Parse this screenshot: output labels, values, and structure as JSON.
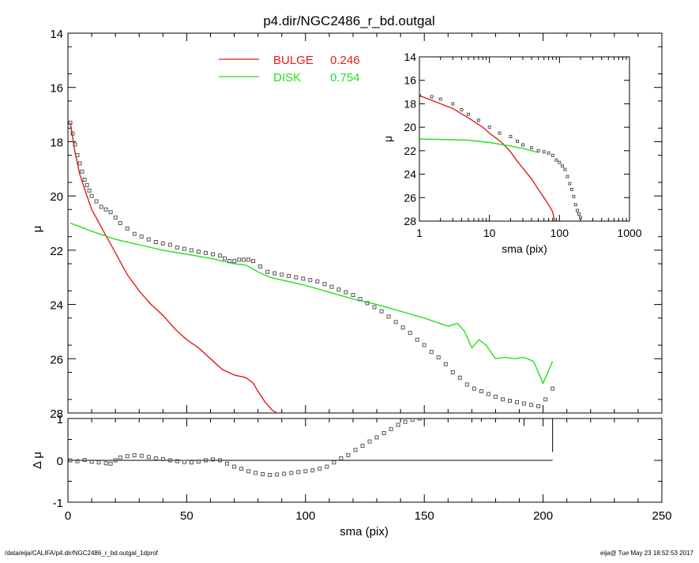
{
  "title": "p4.dir/NGC2486_r_bd.outgal",
  "footer": {
    "left": "/data/eija/CALIFA/p4.dir/NGC2486_r_bd.outgal_1dprof",
    "right": "eija@  Tue May 23 18:52:53 2017"
  },
  "colors": {
    "bulge": "#e31a1c",
    "disk": "#22e022",
    "data": "#555555",
    "axis": "#000000"
  },
  "chart_data": [
    {
      "type": "scatter",
      "name": "main",
      "xlabel": "sma (pix)",
      "ylabel": "μ",
      "xlim": [
        0,
        250
      ],
      "ylim": [
        28,
        14
      ],
      "xticks": [
        0,
        50,
        100,
        150,
        200,
        250
      ],
      "yticks": [
        14,
        16,
        18,
        20,
        22,
        24,
        26,
        28
      ],
      "legend": [
        {
          "label": "BULGE",
          "value": "0.246",
          "color": "#e31a1c"
        },
        {
          "label": "DISK",
          "value": "0.754",
          "color": "#22e022"
        }
      ],
      "series": [
        {
          "name": "BULGE",
          "kind": "line",
          "color": "#e31a1c",
          "x": [
            1,
            3,
            5,
            8,
            10,
            15,
            20,
            25,
            30,
            35,
            40,
            45,
            50,
            55,
            60,
            65,
            70,
            75,
            78,
            80,
            83,
            86,
            88
          ],
          "y": [
            17.3,
            18.4,
            19.2,
            20.0,
            20.5,
            21.3,
            22.1,
            22.9,
            23.5,
            24.0,
            24.4,
            24.9,
            25.3,
            25.6,
            26.0,
            26.4,
            26.6,
            26.7,
            26.9,
            27.2,
            27.6,
            27.9,
            28.0
          ]
        },
        {
          "name": "DISK",
          "kind": "line",
          "color": "#22e022",
          "x": [
            1,
            10,
            20,
            30,
            40,
            50,
            60,
            70,
            75,
            80,
            85,
            100,
            110,
            120,
            130,
            140,
            150,
            160,
            164,
            167,
            170,
            173,
            176,
            180,
            184,
            188,
            192,
            196,
            198,
            200,
            204
          ],
          "y": [
            21.0,
            21.3,
            21.6,
            21.8,
            22.0,
            22.15,
            22.3,
            22.5,
            22.55,
            22.8,
            23.0,
            23.3,
            23.55,
            23.8,
            24.0,
            24.25,
            24.5,
            24.8,
            24.7,
            25.0,
            25.6,
            25.3,
            25.5,
            26.0,
            25.95,
            26.0,
            25.95,
            26.1,
            26.5,
            26.9,
            26.1
          ]
        },
        {
          "name": "data",
          "kind": "points",
          "color": "#555555",
          "x": [
            1,
            2,
            3,
            4,
            5,
            6,
            7,
            8,
            9,
            10,
            12,
            14,
            16,
            18,
            20,
            22,
            25,
            28,
            31,
            34,
            37,
            40,
            43,
            46,
            49,
            52,
            55,
            58,
            61,
            64,
            66,
            68,
            70,
            72,
            74,
            76,
            78,
            81,
            84,
            87,
            90,
            93,
            96,
            99,
            102,
            105,
            108,
            111,
            114,
            117,
            120,
            123,
            126,
            129,
            132,
            135,
            138,
            141,
            144,
            147,
            150,
            153,
            156,
            159,
            162,
            165,
            168,
            171,
            174,
            177,
            180,
            183,
            186,
            189,
            192,
            195,
            198,
            201,
            204
          ],
          "y": [
            17.3,
            17.7,
            18.1,
            18.5,
            18.8,
            19.1,
            19.4,
            19.6,
            19.8,
            20.0,
            20.2,
            20.4,
            20.5,
            20.6,
            20.8,
            21.0,
            21.2,
            21.4,
            21.5,
            21.6,
            21.7,
            21.75,
            21.8,
            21.9,
            21.95,
            22.0,
            22.05,
            22.1,
            22.15,
            22.2,
            22.3,
            22.4,
            22.4,
            22.35,
            22.35,
            22.35,
            22.4,
            22.6,
            22.8,
            22.85,
            22.9,
            22.95,
            23.0,
            23.05,
            23.1,
            23.15,
            23.25,
            23.35,
            23.45,
            23.55,
            23.65,
            23.8,
            23.95,
            24.1,
            24.25,
            24.45,
            24.65,
            24.85,
            25.05,
            25.3,
            25.5,
            25.75,
            25.95,
            26.2,
            26.5,
            26.7,
            26.95,
            27.1,
            27.2,
            27.3,
            27.4,
            27.5,
            27.55,
            27.6,
            27.65,
            27.7,
            27.75,
            27.5,
            27.1
          ]
        }
      ]
    },
    {
      "type": "scatter",
      "name": "residual",
      "xlabel": "sma (pix)",
      "ylabel": "Δ μ",
      "xlim": [
        0,
        250
      ],
      "ylim": [
        -1,
        1
      ],
      "yticks": [
        -1,
        0,
        1
      ],
      "series": [
        {
          "name": "zero",
          "kind": "line",
          "color": "#000000",
          "x": [
            1,
            204
          ],
          "y": [
            0,
            0
          ]
        },
        {
          "name": "residual",
          "kind": "points",
          "color": "#555555",
          "x": [
            1,
            4,
            7,
            10,
            13,
            16,
            18,
            20,
            22,
            25,
            28,
            31,
            34,
            37,
            40,
            43,
            46,
            49,
            52,
            55,
            58,
            61,
            64,
            67,
            70,
            73,
            76,
            79,
            82,
            85,
            88,
            91,
            94,
            97,
            100,
            103,
            106,
            109,
            112,
            115,
            118,
            121,
            124,
            127,
            130,
            133,
            136,
            139,
            142,
            145,
            148
          ],
          "y": [
            0.0,
            -0.02,
            0.01,
            -0.03,
            -0.05,
            -0.07,
            -0.08,
            0.0,
            0.07,
            0.1,
            0.12,
            0.11,
            0.08,
            0.05,
            0.03,
            0.0,
            -0.02,
            -0.04,
            -0.05,
            -0.03,
            0.0,
            0.02,
            0.0,
            -0.08,
            -0.15,
            -0.2,
            -0.26,
            -0.3,
            -0.33,
            -0.35,
            -0.34,
            -0.32,
            -0.3,
            -0.28,
            -0.26,
            -0.24,
            -0.2,
            -0.15,
            -0.05,
            0.05,
            0.12,
            0.25,
            0.35,
            0.45,
            0.55,
            0.65,
            0.75,
            0.85,
            0.92,
            0.97,
            1.0
          ]
        }
      ]
    },
    {
      "type": "scatter",
      "name": "inset",
      "xlabel": "sma (pix)",
      "ylabel": "μ",
      "xscale": "log",
      "xlim": [
        1,
        1000
      ],
      "ylim": [
        28,
        14
      ],
      "xticks": [
        1,
        10,
        100,
        1000
      ],
      "yticks": [
        14,
        16,
        18,
        20,
        22,
        24,
        26,
        28
      ],
      "series": [
        {
          "name": "BULGE",
          "kind": "line",
          "color": "#e31a1c",
          "x": [
            1,
            3,
            5,
            8,
            10,
            15,
            20,
            25,
            30,
            40,
            50,
            60,
            70,
            80,
            85
          ],
          "y": [
            17.3,
            18.4,
            19.2,
            20.0,
            20.5,
            21.3,
            22.1,
            22.9,
            23.5,
            24.4,
            25.3,
            26.0,
            26.6,
            27.2,
            28.0
          ]
        },
        {
          "name": "DISK",
          "kind": "line",
          "color": "#22e022",
          "x": [
            1,
            5,
            10,
            20,
            30,
            40,
            50
          ],
          "y": [
            21.0,
            21.1,
            21.3,
            21.6,
            21.8,
            22.0,
            22.15
          ]
        },
        {
          "name": "data",
          "kind": "points",
          "color": "#555555",
          "x": [
            1,
            1.5,
            2,
            3,
            4,
            5,
            7,
            10,
            14,
            20,
            25,
            30,
            40,
            50,
            60,
            70,
            80,
            90,
            100,
            110,
            120,
            130,
            140,
            150,
            160,
            170,
            180,
            190,
            200
          ],
          "y": [
            17.3,
            17.4,
            17.6,
            18.0,
            18.5,
            18.9,
            19.4,
            20.0,
            20.5,
            20.8,
            21.2,
            21.5,
            21.75,
            22.0,
            22.1,
            22.2,
            22.4,
            22.8,
            23.0,
            23.3,
            23.6,
            24.2,
            24.8,
            25.3,
            25.9,
            26.6,
            27.1,
            27.4,
            27.7
          ]
        }
      ]
    }
  ]
}
